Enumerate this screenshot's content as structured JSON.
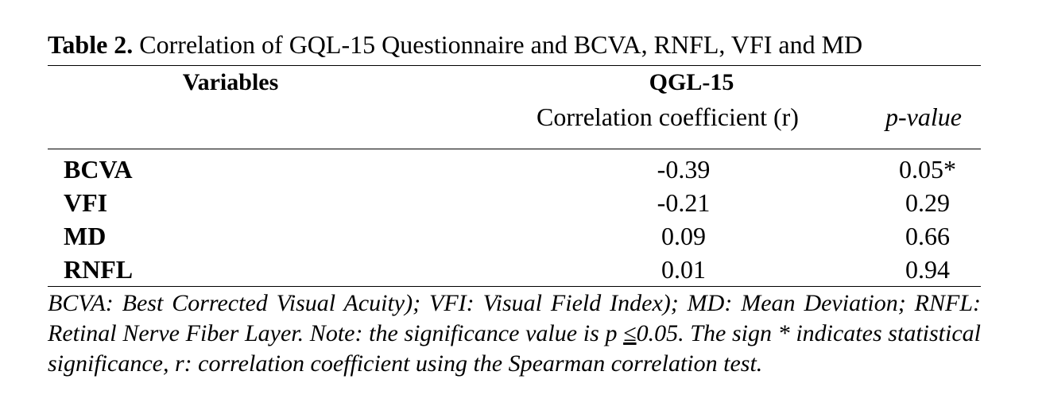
{
  "caption": {
    "label": "Table 2.",
    "text": " Correlation of GQL-15 Questionnaire and BCVA, RNFL, VFI and MD"
  },
  "header": {
    "variables": "Variables",
    "group": "QGL-15",
    "coefficient": "Correlation coefficient (r)",
    "pvalue": "p-value"
  },
  "rows": [
    {
      "variable": "BCVA",
      "r": "-0.39",
      "p": "0.05*"
    },
    {
      "variable": "VFI",
      "r": "-0.21",
      "p": "0.29"
    },
    {
      "variable": "MD",
      "r": "0.09",
      "p": "0.66"
    },
    {
      "variable": "RNFL",
      "r": "0.01",
      "p": "0.94"
    }
  ],
  "note": {
    "part1": "BCVA: Best Corrected Visual Acuity); VFI: Visual Field Index); MD: Mean Deviation; RNFL: Retinal Nerve Fiber Layer. Note: the significance value is p ",
    "leq": "≤",
    "part2": "0.05. The sign * indicates statistical significance, r: correlation coefficient using the Spearman correlation test."
  }
}
